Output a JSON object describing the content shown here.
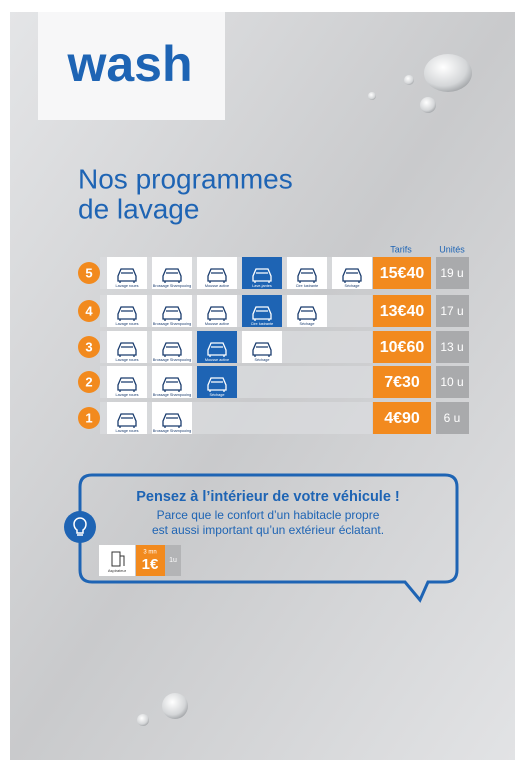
{
  "header": {
    "logo": "wash",
    "title_line1": "Nos programmes",
    "title_line2": "de lavage"
  },
  "table": {
    "col_tarifs": "Tarifs",
    "col_unites": "Unités",
    "rows": [
      {
        "number": "5",
        "price": "15€40",
        "units": "19 u",
        "services": [
          {
            "label": "Lavage roues",
            "highlight": false
          },
          {
            "label": "Brossage Shampooing",
            "highlight": false
          },
          {
            "label": "Mousse active",
            "highlight": false
          },
          {
            "label": "Lave-jantes",
            "highlight": true
          },
          {
            "label": "Cire lustrante",
            "highlight": false
          },
          {
            "label": "Séchage",
            "highlight": false
          }
        ]
      },
      {
        "number": "4",
        "price": "13€40",
        "units": "17 u",
        "services": [
          {
            "label": "Lavage roues",
            "highlight": false
          },
          {
            "label": "Brossage Shampooing",
            "highlight": false
          },
          {
            "label": "Mousse active",
            "highlight": false
          },
          {
            "label": "Cire lustrante",
            "highlight": true
          },
          {
            "label": "Séchage",
            "highlight": false
          }
        ]
      },
      {
        "number": "3",
        "price": "10€60",
        "units": "13 u",
        "services": [
          {
            "label": "Lavage roues",
            "highlight": false
          },
          {
            "label": "Brossage Shampooing",
            "highlight": false
          },
          {
            "label": "Mousse active",
            "highlight": true
          },
          {
            "label": "Séchage",
            "highlight": false
          }
        ]
      },
      {
        "number": "2",
        "price": "7€30",
        "units": "10 u",
        "services": [
          {
            "label": "Lavage roues",
            "highlight": false
          },
          {
            "label": "Brossage Shampooing",
            "highlight": false
          },
          {
            "label": "Séchage",
            "highlight": true
          }
        ]
      },
      {
        "number": "1",
        "price": "4€90",
        "units": "6 u",
        "services": [
          {
            "label": "Lavage roues",
            "highlight": false
          },
          {
            "label": "Brossage Shampooing",
            "highlight": false
          }
        ]
      }
    ]
  },
  "bubble": {
    "title": "Pensez à l’intérieur de votre véhicule !",
    "line1": "Parce que le confort d’un habitacle propre",
    "line2": "est aussi important qu’un extérieur éclatant.",
    "service": "Aspirateur",
    "duration": "3 mn",
    "price": "1€",
    "units": "1u"
  }
}
